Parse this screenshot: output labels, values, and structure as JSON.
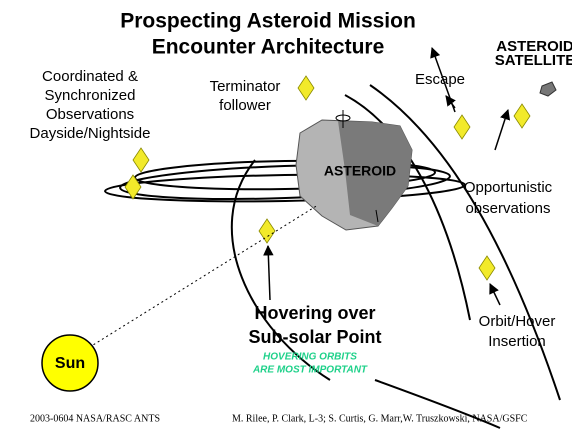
{
  "title": [
    "Prospecting Asteroid Mission",
    "Encounter Architecture"
  ],
  "labels": {
    "asteroid_satellite": [
      "ASTEROID",
      "SATELLITE"
    ],
    "coordinated": [
      "Coordinated &",
      "Synchronized",
      "Observations",
      "Dayside/Nightside"
    ],
    "terminator": [
      "Terminator",
      "follower"
    ],
    "escape": "Escape",
    "asteroid": "ASTEROID",
    "opportunistic": [
      "Opportunistic",
      "observations"
    ],
    "hovering": [
      "Hovering over",
      "Sub-solar Point"
    ],
    "hovering_note": [
      "HOVERING ORBITS",
      "ARE MOST IMPORTANT"
    ],
    "insertion": [
      "Orbit/Hover",
      "Insertion"
    ],
    "sun": "Sun"
  },
  "footer": {
    "left": "2003-0604 NASA/RASC ANTS",
    "right": "M. Rilee, P. Clark, L-3; S. Curtis, G. Marr,W. Truszkowski, NASA/GSFC"
  }
}
